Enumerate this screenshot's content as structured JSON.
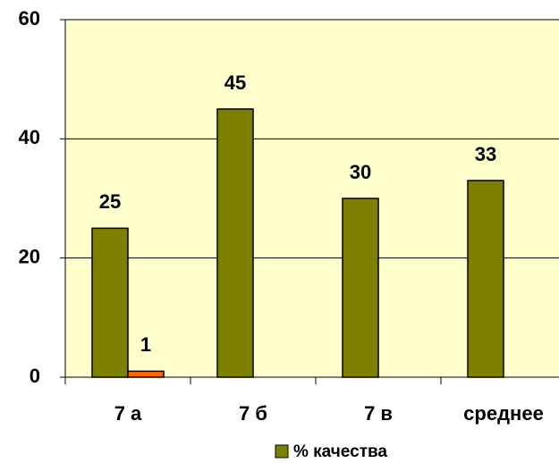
{
  "chart_data": {
    "type": "bar",
    "categories": [
      "7 а",
      "7 б",
      "7 в",
      "среднее"
    ],
    "series": [
      {
        "name": "% качества",
        "color": "#808000",
        "values": [
          25,
          45,
          30,
          33
        ]
      },
      {
        "color": "#ff6600",
        "values": [
          1,
          null,
          null,
          null
        ]
      }
    ],
    "ylim": [
      0,
      60
    ],
    "yticks": [
      0,
      20,
      40,
      60
    ],
    "grid": true,
    "background": "#ffffcc",
    "legend": "bottom"
  }
}
